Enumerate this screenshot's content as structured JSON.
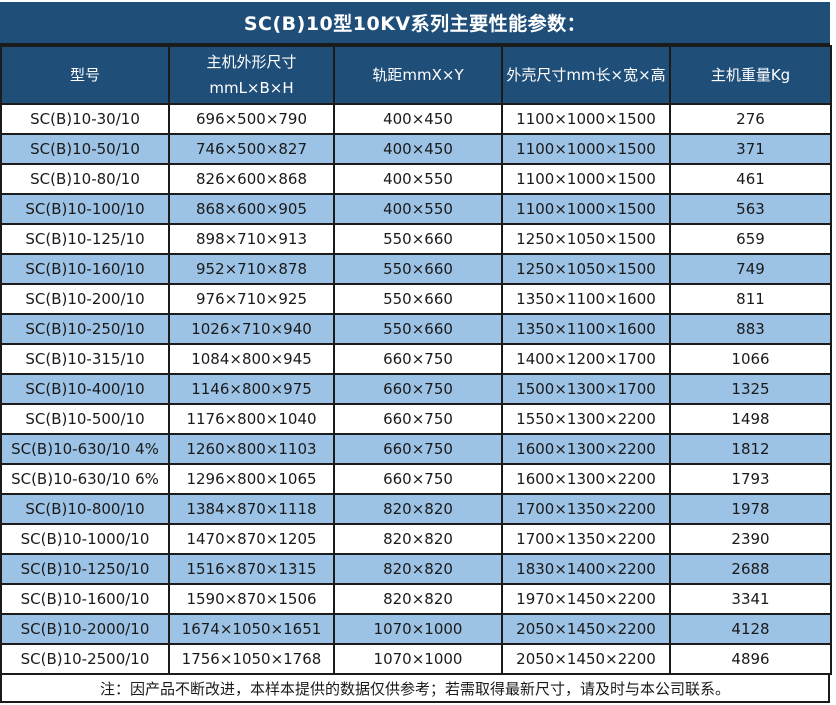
{
  "title": "SC(B)10型10KV系列主要性能参数：",
  "table": {
    "headers": [
      "型号",
      "主机外形尺寸\nmmL×B×H",
      "轨距mmX×Y",
      "外壳尺寸mm长×宽×高",
      "主机重量Kg"
    ],
    "rows": [
      [
        "SC(B)10-30/10",
        "696×500×790",
        "400×450",
        "1100×1000×1500",
        "276"
      ],
      [
        "SC(B)10-50/10",
        "746×500×827",
        "400×450",
        "1100×1000×1500",
        "371"
      ],
      [
        "SC(B)10-80/10",
        "826×600×868",
        "400×550",
        "1100×1000×1500",
        "461"
      ],
      [
        "SC(B)10-100/10",
        "868×600×905",
        "400×550",
        "1100×1000×1500",
        "563"
      ],
      [
        "SC(B)10-125/10",
        "898×710×913",
        "550×660",
        "1250×1050×1500",
        "659"
      ],
      [
        "SC(B)10-160/10",
        "952×710×878",
        "550×660",
        "1250×1050×1500",
        "749"
      ],
      [
        "SC(B)10-200/10",
        "976×710×925",
        "550×660",
        "1350×1100×1600",
        "811"
      ],
      [
        "SC(B)10-250/10",
        "1026×710×940",
        "550×660",
        "1350×1100×1600",
        "883"
      ],
      [
        "SC(B)10-315/10",
        "1084×800×945",
        "660×750",
        "1400×1200×1700",
        "1066"
      ],
      [
        "SC(B)10-400/10",
        "1146×800×975",
        "660×750",
        "1500×1300×1700",
        "1325"
      ],
      [
        "SC(B)10-500/10",
        "1176×800×1040",
        "660×750",
        "1550×1300×2200",
        "1498"
      ],
      [
        "SC(B)10-630/10 4%",
        "1260×800×1103",
        "660×750",
        "1600×1300×2200",
        "1812"
      ],
      [
        "SC(B)10-630/10 6%",
        "1296×800×1065",
        "660×750",
        "1600×1300×2200",
        "1793"
      ],
      [
        "SC(B)10-800/10",
        "1384×870×1118",
        "820×820",
        "1700×1350×2200",
        "1978"
      ],
      [
        "SC(B)10-1000/10",
        "1470×870×1205",
        "820×820",
        "1700×1350×2200",
        "2390"
      ],
      [
        "SC(B)10-1250/10",
        "1516×870×1315",
        "820×820",
        "1830×1400×2200",
        "2688"
      ],
      [
        "SC(B)10-1600/10",
        "1590×870×1506",
        "820×820",
        "1970×1450×2200",
        "3341"
      ],
      [
        "SC(B)10-2000/10",
        "1674×1050×1651",
        "1070×1000",
        "2050×1450×2200",
        "4128"
      ],
      [
        "SC(B)10-2500/10",
        "1756×1050×1768",
        "1070×1000",
        "2050×1450×2200",
        "4896"
      ]
    ]
  },
  "note": "注：因产品不断改进，本样本提供的数据仅供参考；若需取得最新尺寸，请及时与本公司联系。",
  "colors": {
    "header_bg": "#1F4E79",
    "row_alt_bg": "#9CC3E6",
    "row_bg": "#FFFFFF",
    "border": "#1B1B1B",
    "header_text": "#FFFFFF",
    "body_text": "#1A1A1A"
  }
}
